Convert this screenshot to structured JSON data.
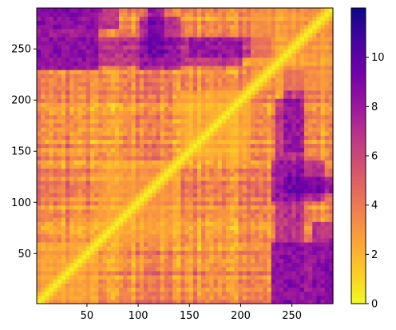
{
  "chart_data": {
    "type": "heatmap",
    "title": "",
    "xlabel": "",
    "ylabel": "",
    "x_range": [
      1,
      290
    ],
    "y_range": [
      1,
      290
    ],
    "y_origin": "lower",
    "grid": false,
    "x_ticks": [
      50,
      100,
      150,
      200,
      250
    ],
    "y_ticks": [
      50,
      100,
      150,
      200,
      250
    ],
    "colormap": "plasma_r",
    "colorbar": {
      "min": 0,
      "max": 12,
      "ticks": [
        0,
        2,
        4,
        6,
        8,
        10
      ],
      "placement": "right"
    },
    "diagonal_value": 0,
    "description_of_values": "symmetric pairwise distance matrix; 0 on the diagonal, mostly 1-5, higher (8-11) bands near x 230-290 and y 240-260",
    "high_value_regions": [
      {
        "x": [
          230,
          290
        ],
        "y": [
          1,
          60
        ],
        "value": 10
      },
      {
        "x": [
          230,
          280
        ],
        "y": [
          100,
          140
        ],
        "value": 9
      },
      {
        "x": [
          240,
          260
        ],
        "y": [
          150,
          230
        ],
        "value": 8
      },
      {
        "x": [
          1,
          200
        ],
        "y": [
          235,
          260
        ],
        "value": 9
      },
      {
        "x": [
          1,
          80
        ],
        "y": [
          270,
          290
        ],
        "value": 9
      },
      {
        "x": [
          110,
          125
        ],
        "y": [
          240,
          290
        ],
        "value": 10
      }
    ],
    "low_value_regions": [
      {
        "x": [
          1,
          60
        ],
        "y": [
          1,
          60
        ],
        "value": 2
      },
      {
        "x": [
          140,
          210
        ],
        "y": [
          140,
          210
        ],
        "value": 1.5
      },
      {
        "x": [
          60,
          140
        ],
        "y": [
          60,
          140
        ],
        "value": 2
      },
      {
        "x": [
          210,
          290
        ],
        "y": [
          210,
          290
        ],
        "value": 2.5
      }
    ]
  }
}
